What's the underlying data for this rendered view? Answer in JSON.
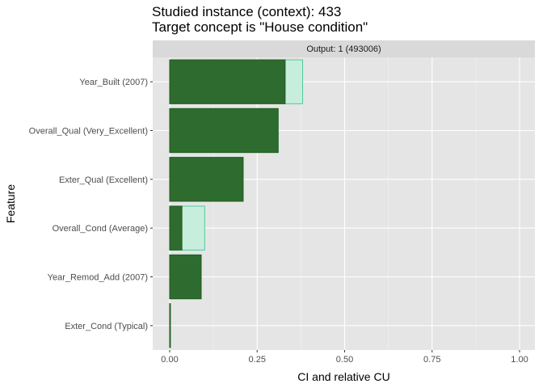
{
  "chart_data": {
    "type": "bar",
    "orientation": "horizontal",
    "title": "Studied instance (context): 433",
    "subtitle": "Target concept is \"House condition\"",
    "facet_label": "Output: 1 (493006)",
    "xlabel": "CI and relative CU",
    "ylabel": "Feature",
    "xlim": [
      0,
      1
    ],
    "x_ticks": [
      "0.00",
      "0.25",
      "0.50",
      "0.75",
      "1.00"
    ],
    "grid": true,
    "colors": {
      "ci_fill": "#2e6b2e",
      "ci_stroke": "#1f5d1f",
      "cu_fill": "#c7eedd",
      "cu_stroke": "#4fc99b",
      "panel_bg": "#e5e5e5",
      "strip_bg": "#d9d9d9"
    },
    "categories": [
      "Year_Built (2007)",
      "Overall_Qual (Very_Excellent)",
      "Exter_Qual (Excellent)",
      "Overall_Cond (Average)",
      "Year_Remod_Add (2007)",
      "Exter_Cond (Typical)"
    ],
    "series": [
      {
        "name": "CI",
        "values": [
          0.38,
          0.31,
          0.21,
          0.1,
          0.09,
          0.002
        ]
      },
      {
        "name": "CU",
        "values": [
          0.33,
          0.31,
          0.21,
          0.035,
          0.09,
          0.002
        ]
      }
    ]
  }
}
